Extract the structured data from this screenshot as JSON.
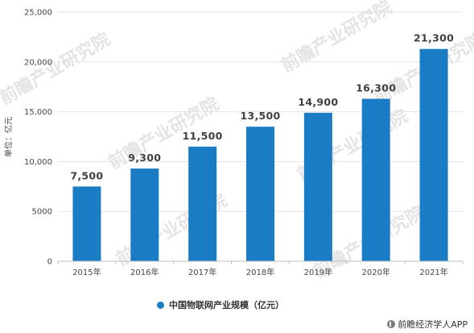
{
  "chart_data": {
    "type": "bar",
    "categories": [
      "2015年",
      "2016年",
      "2017年",
      "2018年",
      "2019年",
      "2020年",
      "2021年"
    ],
    "values": [
      7500,
      9300,
      11500,
      13500,
      14900,
      16300,
      21300
    ],
    "value_labels": [
      "7,500",
      "9,300",
      "11,500",
      "13,500",
      "14,900",
      "16,300",
      "21,300"
    ],
    "ylabel": "单位：亿元",
    "ylim": [
      0,
      25000
    ],
    "yticks": [
      0,
      5000,
      10000,
      15000,
      20000,
      25000
    ],
    "ytick_labels": [
      "0",
      "5000",
      "10,000",
      "15,000",
      "20,000",
      "25,000"
    ],
    "series": [
      {
        "name": "中国物联网产业规模（亿元）",
        "values": [
          7500,
          9300,
          11500,
          13500,
          14900,
          16300,
          21300
        ]
      }
    ],
    "bar_color": "#1b7cc6",
    "grid": true,
    "legend_placement": "bottom-center"
  },
  "watermark": {
    "text": "前瞻产业研究院",
    "icon": "qianzhan-logo-icon"
  },
  "source": {
    "icon": "qianzhan-source-icon",
    "text": "前瞻经济学人APP"
  }
}
